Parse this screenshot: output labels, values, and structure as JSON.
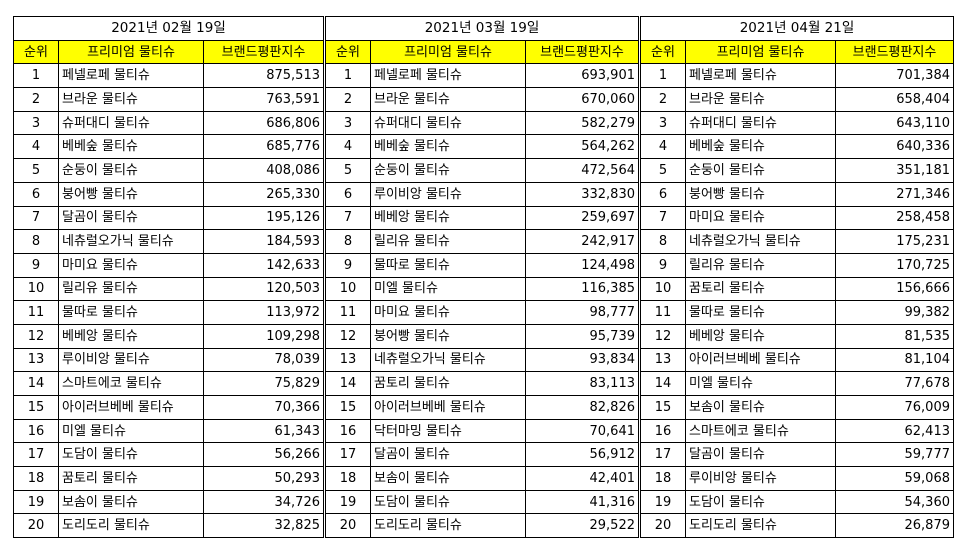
{
  "panels": [
    {
      "date": "2021년 02월 19일",
      "headers": [
        "순위",
        "프리미엄 물티슈",
        "브랜드평판지수"
      ],
      "rows": [
        [
          "1",
          "페넬로페 물티슈",
          "875,513"
        ],
        [
          "2",
          "브라운 물티슈",
          "763,591"
        ],
        [
          "3",
          "슈퍼대디 물티슈",
          "686,806"
        ],
        [
          "4",
          "베베숲 물티슈",
          "685,776"
        ],
        [
          "5",
          "순둥이 물티슈",
          "408,086"
        ],
        [
          "6",
          "붕어빵 물티슈",
          "265,330"
        ],
        [
          "7",
          "달곰이 물티슈",
          "195,126"
        ],
        [
          "8",
          "네츄럴오가닉 물티슈",
          "184,593"
        ],
        [
          "9",
          "마미요 물티슈",
          "142,633"
        ],
        [
          "10",
          "릴리유 물티슈",
          "120,503"
        ],
        [
          "11",
          "물따로 물티슈",
          "113,972"
        ],
        [
          "12",
          "베베앙 물티슈",
          "109,298"
        ],
        [
          "13",
          "루이비앙 물티슈",
          "78,039"
        ],
        [
          "14",
          "스마트에코 물티슈",
          "75,829"
        ],
        [
          "15",
          "아이러브베베 물티슈",
          "70,366"
        ],
        [
          "16",
          "미엘 물티슈",
          "61,343"
        ],
        [
          "17",
          "도담이 물티슈",
          "56,266"
        ],
        [
          "18",
          "꿈토리 물티슈",
          "50,293"
        ],
        [
          "19",
          "보솜이 물티슈",
          "34,726"
        ],
        [
          "20",
          "도리도리 물티슈",
          "32,825"
        ]
      ]
    },
    {
      "date": "2021년 03월 19일",
      "headers": [
        "순위",
        "프리미엄 물티슈",
        "브랜드평판지수"
      ],
      "rows": [
        [
          "1",
          "페넬로페 물티슈",
          "693,901"
        ],
        [
          "2",
          "브라운 물티슈",
          "670,060"
        ],
        [
          "3",
          "슈퍼대디 물티슈",
          "582,279"
        ],
        [
          "4",
          "베베숲 물티슈",
          "564,262"
        ],
        [
          "5",
          "순둥이 물티슈",
          "472,564"
        ],
        [
          "6",
          "루이비앙 물티슈",
          "332,830"
        ],
        [
          "7",
          "베베앙 물티슈",
          "259,697"
        ],
        [
          "8",
          "릴리유 물티슈",
          "242,917"
        ],
        [
          "9",
          "물따로 물티슈",
          "124,498"
        ],
        [
          "10",
          "미엘 물티슈",
          "116,385"
        ],
        [
          "11",
          "마미요 물티슈",
          "98,777"
        ],
        [
          "12",
          "붕어빵 물티슈",
          "95,739"
        ],
        [
          "13",
          "네츄럴오가닉 물티슈",
          "93,834"
        ],
        [
          "14",
          "꿈토리 물티슈",
          "83,113"
        ],
        [
          "15",
          "아이러브베베 물티슈",
          "82,826"
        ],
        [
          "16",
          "닥터마밍 물티슈",
          "70,641"
        ],
        [
          "17",
          "달곰이 물티슈",
          "56,912"
        ],
        [
          "18",
          "보솜이 물티슈",
          "42,401"
        ],
        [
          "19",
          "도담이 물티슈",
          "41,316"
        ],
        [
          "20",
          "도리도리 물티슈",
          "29,522"
        ]
      ]
    },
    {
      "date": "2021년 04월 21일",
      "headers": [
        "순위",
        "프리미엄 물티슈",
        "브랜드평판지수"
      ],
      "rows": [
        [
          "1",
          "페넬로페 물티슈",
          "701,384"
        ],
        [
          "2",
          "브라운 물티슈",
          "658,404"
        ],
        [
          "3",
          "슈퍼대디 물티슈",
          "643,110"
        ],
        [
          "4",
          "베베숲 물티슈",
          "640,336"
        ],
        [
          "5",
          "순둥이 물티슈",
          "351,181"
        ],
        [
          "6",
          "붕어빵 물티슈",
          "271,346"
        ],
        [
          "7",
          "마미요 물티슈",
          "258,458"
        ],
        [
          "8",
          "네츄럴오가닉 물티슈",
          "175,231"
        ],
        [
          "9",
          "릴리유 물티슈",
          "170,725"
        ],
        [
          "10",
          "꿈토리 물티슈",
          "156,666"
        ],
        [
          "11",
          "물따로 물티슈",
          "99,382"
        ],
        [
          "12",
          "베베앙 물티슈",
          "81,535"
        ],
        [
          "13",
          "아이러브베베 물티슈",
          "81,104"
        ],
        [
          "14",
          "미엘 물티슈",
          "77,678"
        ],
        [
          "15",
          "보솜이 물티슈",
          "76,009"
        ],
        [
          "16",
          "스마트에코 물티슈",
          "62,413"
        ],
        [
          "17",
          "달곰이 물티슈",
          "59,777"
        ],
        [
          "18",
          "루이비앙 물티슈",
          "59,068"
        ],
        [
          "19",
          "도담이 물티슈",
          "54,360"
        ],
        [
          "20",
          "도리도리 물티슈",
          "26,879"
        ]
      ]
    }
  ],
  "colors": {
    "header_bg": "#ffff00",
    "border": "#000000"
  }
}
